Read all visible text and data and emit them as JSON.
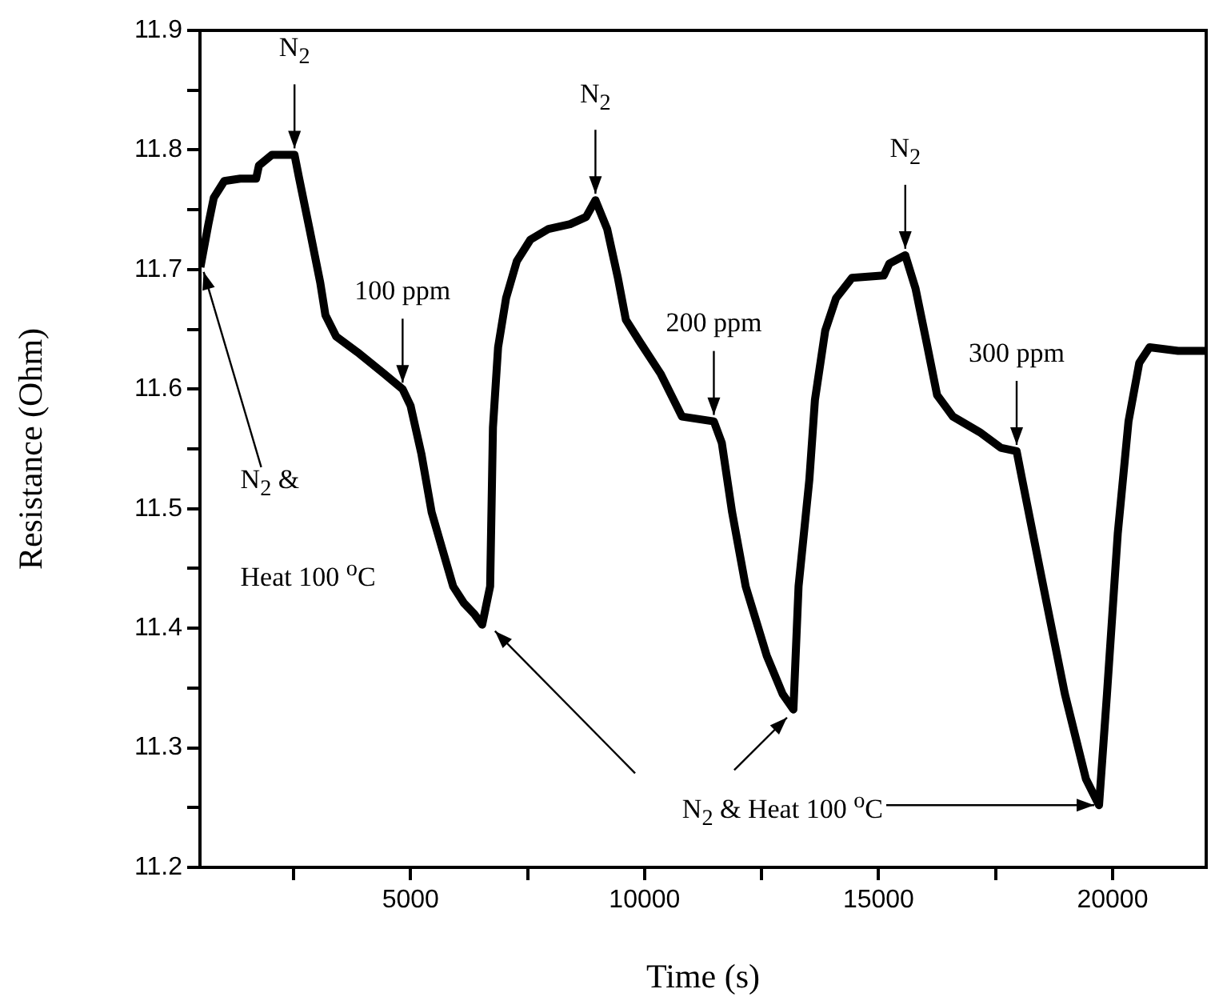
{
  "chart_data": {
    "type": "line",
    "xlabel": "Time (s)",
    "ylabel": "Resistance (Ohm)",
    "x": [
      510,
      680,
      795,
      1020,
      1360,
      1700,
      1760,
      2040,
      2520,
      2610,
      2840,
      3070,
      3180,
      3410,
      3860,
      4430,
      4830,
      5000,
      5230,
      5450,
      5680,
      5910,
      6140,
      6360,
      6530,
      6700,
      6760,
      6870,
      7040,
      7270,
      7560,
      7950,
      8410,
      8750,
      8950,
      9200,
      9430,
      9600,
      9890,
      10340,
      10570,
      10800,
      11480,
      11650,
      11870,
      12160,
      12610,
      12950,
      13180,
      13290,
      13520,
      13640,
      13860,
      14090,
      14430,
      15110,
      15230,
      15570,
      15790,
      16020,
      16250,
      16590,
      17160,
      17610,
      17950,
      18070,
      18520,
      18980,
      19430,
      19710,
      19880,
      20110,
      20340,
      20570,
      20790,
      21400,
      22000
    ],
    "series": [
      {
        "color": "#000000",
        "values": [
          11.702,
          11.738,
          11.76,
          11.774,
          11.776,
          11.776,
          11.787,
          11.796,
          11.796,
          11.778,
          11.734,
          11.689,
          11.662,
          11.644,
          11.631,
          11.613,
          11.6,
          11.586,
          11.546,
          11.497,
          11.466,
          11.435,
          11.421,
          11.412,
          11.403,
          11.435,
          11.568,
          11.635,
          11.676,
          11.707,
          11.725,
          11.734,
          11.738,
          11.744,
          11.758,
          11.734,
          11.693,
          11.658,
          11.64,
          11.613,
          11.595,
          11.577,
          11.573,
          11.555,
          11.497,
          11.435,
          11.377,
          11.345,
          11.332,
          11.435,
          11.524,
          11.591,
          11.649,
          11.676,
          11.693,
          11.695,
          11.705,
          11.712,
          11.684,
          11.64,
          11.595,
          11.577,
          11.564,
          11.551,
          11.548,
          11.524,
          11.435,
          11.345,
          11.274,
          11.252,
          11.345,
          11.479,
          11.573,
          11.622,
          11.635,
          11.632,
          11.632
        ]
      }
    ],
    "xlim": [
      500,
      22000
    ],
    "xticks": [
      {
        "value": 2500,
        "label": null
      },
      5000,
      {
        "value": 7500,
        "label": null
      },
      10000,
      {
        "value": 12500,
        "label": null
      },
      15000,
      {
        "value": 17500,
        "label": null
      },
      20000
    ],
    "ylim": [
      11.2,
      11.9
    ],
    "yticks": [
      11.2,
      {
        "value": 11.25,
        "label": null
      },
      11.3,
      {
        "value": 11.35,
        "label": null
      },
      11.4,
      {
        "value": 11.45,
        "label": null
      },
      11.5,
      {
        "value": 11.55,
        "label": null
      },
      11.6,
      {
        "value": 11.65,
        "label": null
      },
      11.7,
      {
        "value": 11.75,
        "label": null
      },
      11.8,
      {
        "value": 11.85,
        "label": null
      },
      11.9
    ],
    "annotations": [
      {
        "text": "N$_{2}$",
        "x": 2520,
        "y": 11.796
      },
      {
        "text": "100 ppm",
        "x": 4830,
        "y": 11.6
      },
      {
        "text": "N$_{2}$",
        "x": 8950,
        "y": 11.758
      },
      {
        "text": "200 ppm",
        "x": 11480,
        "y": 11.573
      },
      {
        "text": "N$_{2}$",
        "x": 15570,
        "y": 11.712
      },
      {
        "text": "300 ppm",
        "x": 17950,
        "y": 11.548
      },
      {
        "text": "N$_{2}$ &",
        "x": 510,
        "y": 11.702
      },
      "Heat 100 $^{o}$C",
      {
        "text": "N$_{2}$ & Heat 100 $^{o}$C",
        "x": 19710,
        "y": 11.252
      }
    ]
  }
}
